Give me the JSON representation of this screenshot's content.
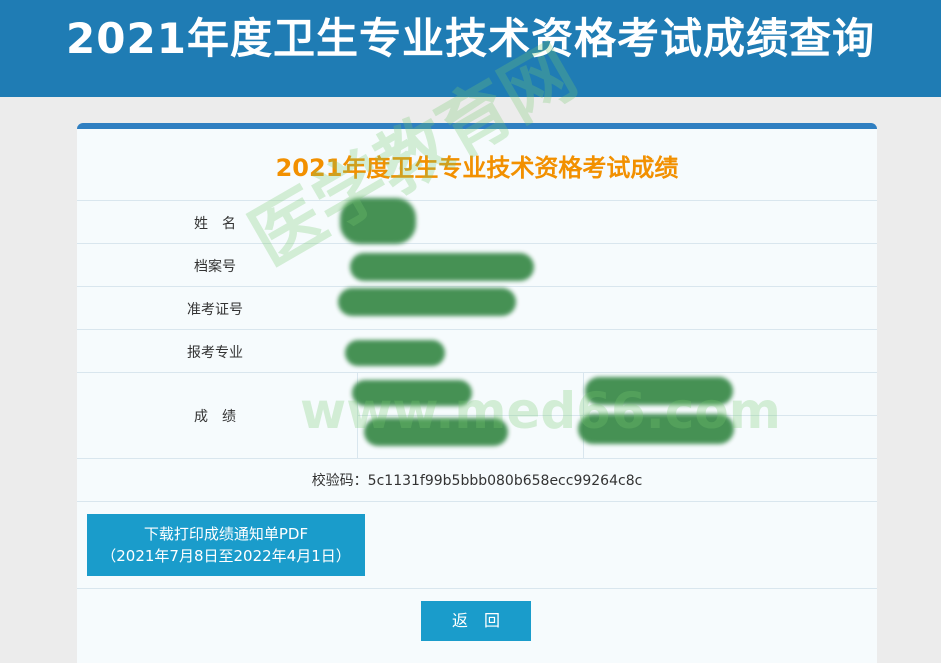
{
  "header": {
    "title": "2021年度卫生专业技术资格考试成绩查询"
  },
  "card": {
    "title": "2021年度卫生专业技术资格考试成绩",
    "rows": [
      {
        "label": "姓　名"
      },
      {
        "label": "档案号"
      },
      {
        "label": "准考证号"
      },
      {
        "label": "报考专业"
      },
      {
        "label": "成　绩"
      }
    ],
    "checksum": "校验码：5c1131f99b5bbb080b658ecc99264c8c",
    "download_button": {
      "line1": "下载打印成绩通知单PDF",
      "line2": "（2021年7月8日至2022年4月1日）"
    },
    "back_button": "返　回"
  },
  "watermark": {
    "name": "医学教育网",
    "url": "www.med66.com"
  }
}
